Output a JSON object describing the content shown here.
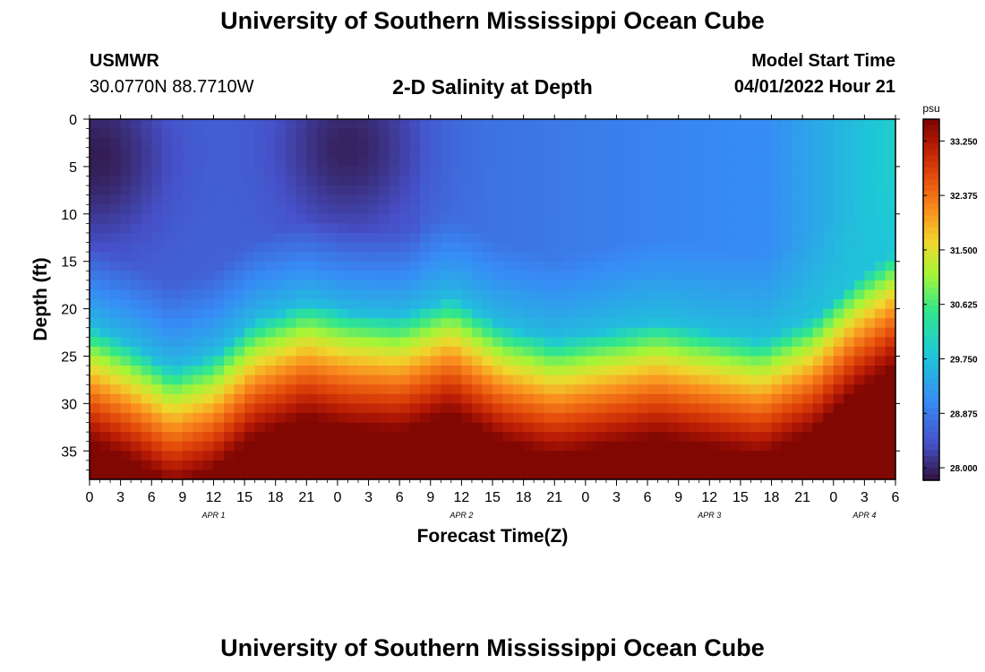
{
  "header": {
    "title": "University of Southern Mississippi Ocean Cube",
    "station": "USMWR",
    "coords": "30.0770N  88.7710W",
    "product": "2-D Salinity at Depth",
    "model_label": "Model Start Time",
    "model_time": "04/01/2022 Hour 21"
  },
  "footer": {
    "title": "University of Southern Mississippi Ocean Cube"
  },
  "chart_data": {
    "type": "heatmap",
    "title": "2-D Salinity at Depth",
    "xlabel": "Forecast Time(Z)",
    "ylabel": "Depth (ft)",
    "x_tick_labels": [
      "0",
      "3",
      "6",
      "9",
      "12",
      "15",
      "18",
      "21",
      "0",
      "3",
      "6",
      "9",
      "12",
      "15",
      "18",
      "21",
      "0",
      "3",
      "6",
      "9",
      "12",
      "15",
      "18",
      "21",
      "0",
      "3",
      "6"
    ],
    "date_labels": [
      {
        "label": "APR 1",
        "hour": 12
      },
      {
        "label": "APR 2",
        "hour": 36
      },
      {
        "label": "APR 3",
        "hour": 60
      },
      {
        "label": "APR 4",
        "hour": 75
      }
    ],
    "xlim": [
      0,
      78
    ],
    "y_ticks": [
      0,
      5,
      10,
      15,
      20,
      25,
      30,
      35
    ],
    "ylim": [
      0,
      38
    ],
    "y_inverted": true,
    "colorbar": {
      "unit": "psu",
      "ticks": [
        "33.250",
        "32.375",
        "31.500",
        "30.625",
        "29.750",
        "28.875",
        "28.000"
      ],
      "range": [
        27.8,
        33.6
      ]
    },
    "isohaline_29_750_depth": [
      {
        "hour": 0,
        "depth": 22
      },
      {
        "hour": 4,
        "depth": 24
      },
      {
        "hour": 8,
        "depth": 26.5
      },
      {
        "hour": 12,
        "depth": 25
      },
      {
        "hour": 16,
        "depth": 21.5
      },
      {
        "hour": 21,
        "depth": 19.5
      },
      {
        "hour": 25,
        "depth": 20.5
      },
      {
        "hour": 30,
        "depth": 21
      },
      {
        "hour": 35,
        "depth": 19
      },
      {
        "hour": 40,
        "depth": 22
      },
      {
        "hour": 45,
        "depth": 23.5
      },
      {
        "hour": 50,
        "depth": 22.5
      },
      {
        "hour": 55,
        "depth": 21.5
      },
      {
        "hour": 60,
        "depth": 22.5
      },
      {
        "hour": 65,
        "depth": 23.5
      },
      {
        "hour": 70,
        "depth": 21
      },
      {
        "hour": 74,
        "depth": 17
      },
      {
        "hour": 78,
        "depth": 14
      }
    ],
    "surface_min_regions": [
      {
        "hour": 0.5,
        "depth": 4,
        "value": 27.9
      },
      {
        "hour": 25,
        "depth": 3,
        "value": 27.95
      }
    ]
  }
}
